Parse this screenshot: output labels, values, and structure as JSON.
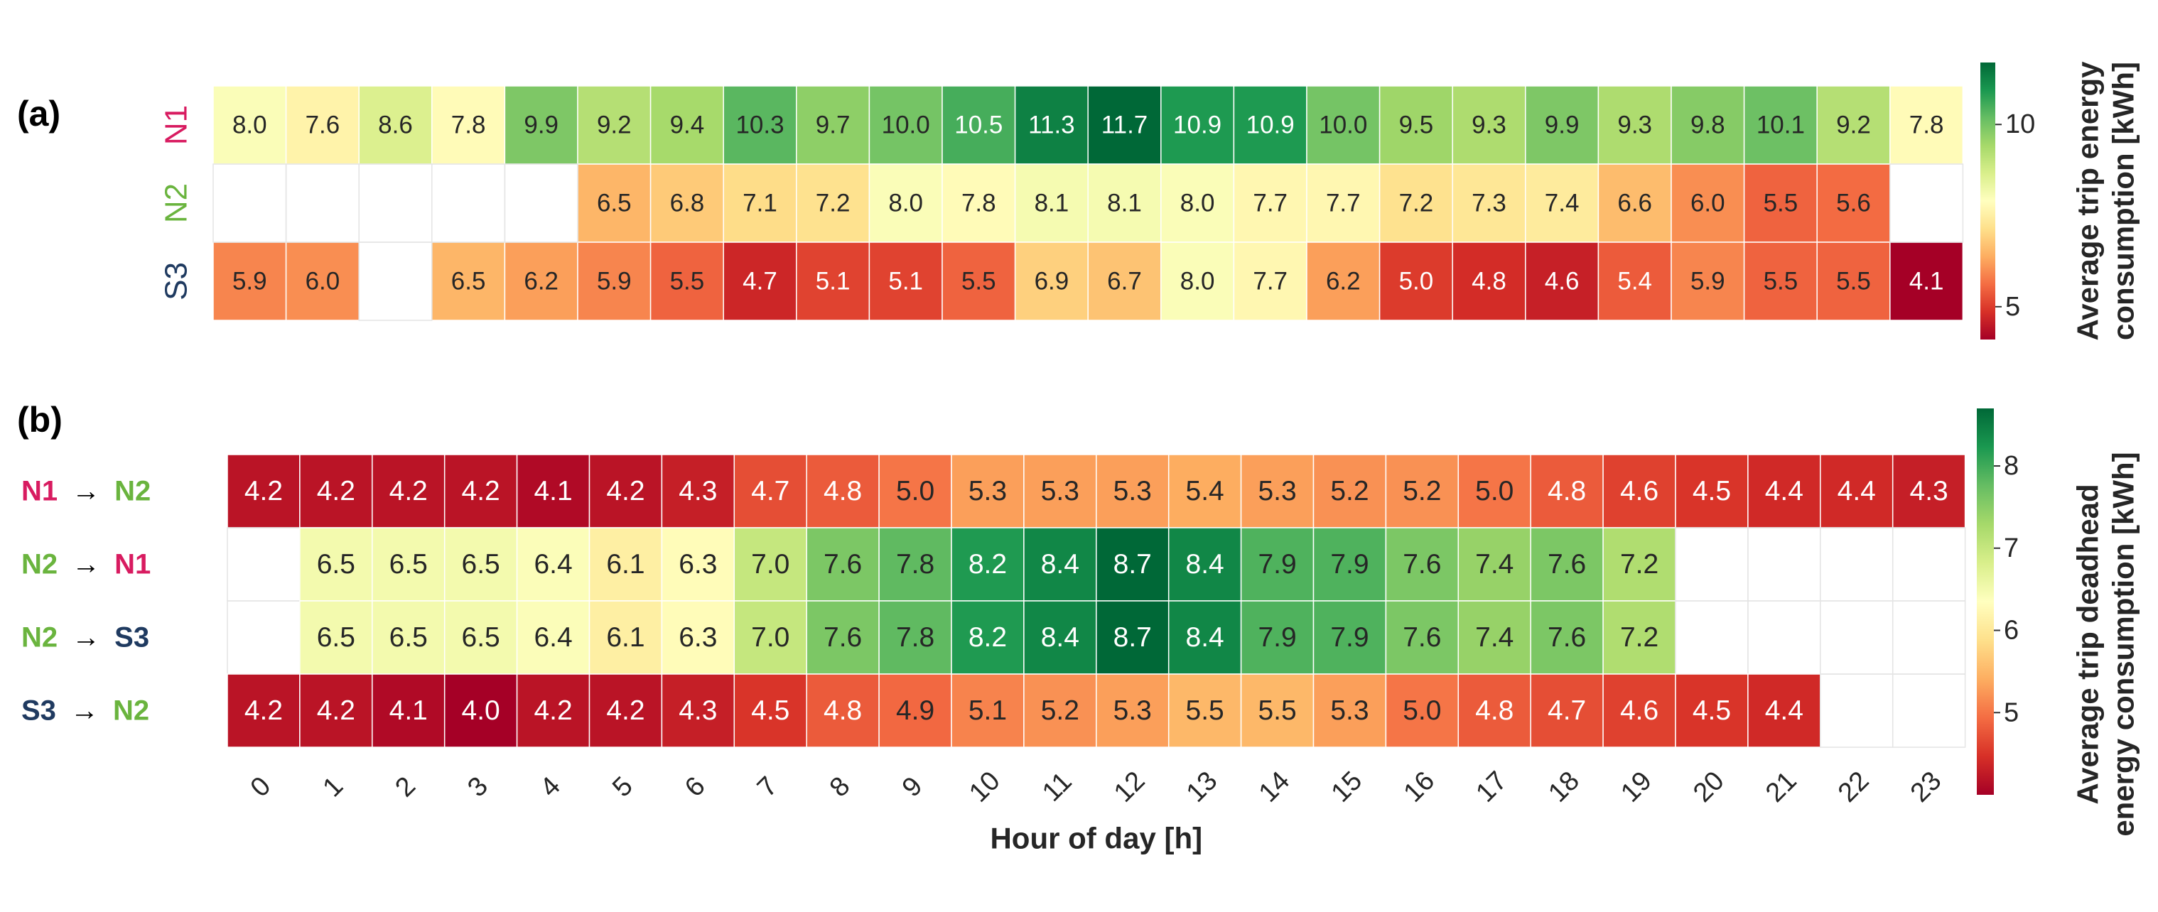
{
  "chart_data": [
    {
      "type": "heatmap",
      "panel_label": "(a)",
      "x": [
        0,
        1,
        2,
        3,
        4,
        5,
        6,
        7,
        8,
        9,
        10,
        11,
        12,
        13,
        14,
        15,
        16,
        17,
        18,
        19,
        20,
        21,
        22,
        23
      ],
      "rows": [
        "N1",
        "N2",
        "S3"
      ],
      "row_colors": [
        "#d81b60",
        "#6ab43e",
        "#1f3a60"
      ],
      "values": [
        [
          8.0,
          7.6,
          8.6,
          7.8,
          9.9,
          9.2,
          9.4,
          10.3,
          9.7,
          10.0,
          10.5,
          11.3,
          11.7,
          10.9,
          10.9,
          10.0,
          9.5,
          9.3,
          9.9,
          9.3,
          9.8,
          10.1,
          9.2,
          7.8
        ],
        [
          null,
          null,
          null,
          null,
          null,
          6.5,
          6.8,
          7.1,
          7.2,
          8.0,
          7.8,
          8.1,
          8.1,
          8.0,
          7.7,
          7.7,
          7.2,
          7.3,
          7.4,
          6.6,
          6.0,
          5.5,
          5.6,
          null
        ],
        [
          5.9,
          6.0,
          null,
          6.5,
          6.2,
          5.9,
          5.5,
          4.7,
          5.1,
          5.1,
          5.5,
          6.9,
          6.7,
          8.0,
          7.7,
          6.2,
          5.0,
          4.8,
          4.6,
          5.4,
          5.9,
          5.5,
          5.5,
          4.1
        ]
      ],
      "colorbar": {
        "label_line1": "Average trip energy",
        "label_line2": "consumption [kWh]",
        "range": [
          4.1,
          11.7
        ],
        "ticks": [
          5,
          10
        ]
      },
      "colormap": "RdYlGn"
    },
    {
      "type": "heatmap",
      "panel_label": "(b)",
      "x": [
        0,
        1,
        2,
        3,
        4,
        5,
        6,
        7,
        8,
        9,
        10,
        11,
        12,
        13,
        14,
        15,
        16,
        17,
        18,
        19,
        20,
        21,
        22,
        23
      ],
      "xlabel": "Hour of day [h]",
      "rows": [
        {
          "from": "N1",
          "to": "N2",
          "from_color": "#d81b60",
          "to_color": "#6ab43e"
        },
        {
          "from": "N2",
          "to": "N1",
          "from_color": "#6ab43e",
          "to_color": "#d81b60"
        },
        {
          "from": "N2",
          "to": "S3",
          "from_color": "#6ab43e",
          "to_color": "#1f3a60"
        },
        {
          "from": "S3",
          "to": "N2",
          "from_color": "#1f3a60",
          "to_color": "#6ab43e"
        }
      ],
      "arrow": "→",
      "values": [
        [
          4.2,
          4.2,
          4.2,
          4.2,
          4.1,
          4.2,
          4.3,
          4.7,
          4.8,
          5.0,
          5.3,
          5.3,
          5.3,
          5.4,
          5.3,
          5.2,
          5.2,
          5.0,
          4.8,
          4.6,
          4.5,
          4.4,
          4.4,
          4.3
        ],
        [
          null,
          6.5,
          6.5,
          6.5,
          6.4,
          6.1,
          6.3,
          7.0,
          7.6,
          7.8,
          8.2,
          8.4,
          8.7,
          8.4,
          7.9,
          7.9,
          7.6,
          7.4,
          7.6,
          7.2,
          null,
          null,
          null,
          null
        ],
        [
          null,
          6.5,
          6.5,
          6.5,
          6.4,
          6.1,
          6.3,
          7.0,
          7.6,
          7.8,
          8.2,
          8.4,
          8.7,
          8.4,
          7.9,
          7.9,
          7.6,
          7.4,
          7.6,
          7.2,
          null,
          null,
          null,
          null
        ],
        [
          4.2,
          4.2,
          4.1,
          4.0,
          4.2,
          4.2,
          4.3,
          4.5,
          4.8,
          4.9,
          5.1,
          5.2,
          5.3,
          5.5,
          5.5,
          5.3,
          5.0,
          4.8,
          4.7,
          4.6,
          4.5,
          4.4,
          null,
          null
        ]
      ],
      "colorbar": {
        "label_line1": "Average trip deadhead",
        "label_line2": "energy consumption [kWh]",
        "range": [
          4.0,
          8.7
        ],
        "ticks": [
          5,
          6,
          7,
          8
        ]
      },
      "colormap": "RdYlGn"
    }
  ]
}
